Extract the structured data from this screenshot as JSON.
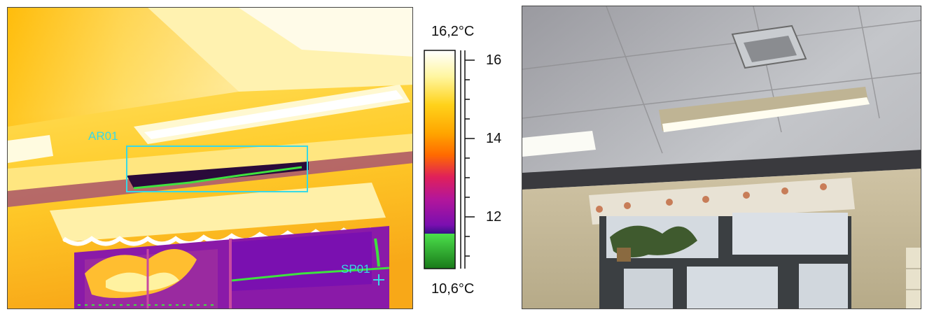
{
  "thermal_image": {
    "area_label": "AR01",
    "spot_label": "SP01"
  },
  "temperature_scale": {
    "max_label": "16,2°C",
    "min_label": "10,6°C",
    "tick_labels": [
      "16",
      "14",
      "12"
    ],
    "max_value": 16.2,
    "min_value": 10.6,
    "palette": [
      "#ffffff",
      "#fff6a0",
      "#ffd21a",
      "#ffa500",
      "#ff6a00",
      "#e0205a",
      "#b4169a",
      "#7b0fb0",
      "#3a108a",
      "#4be04b",
      "#1a7a1a"
    ]
  },
  "colors": {
    "annotation": "#37d8e6"
  }
}
